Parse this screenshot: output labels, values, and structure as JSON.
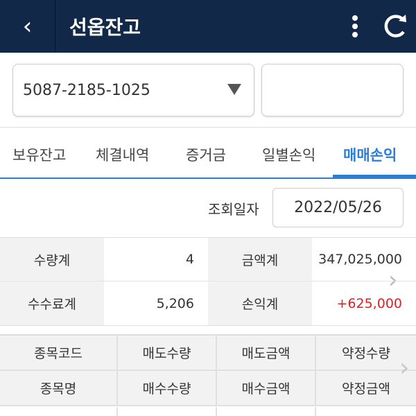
{
  "header": {
    "title": "선옵잔고",
    "back_icon": "chevron-left-icon",
    "more_icon": "more-vertical-icon",
    "refresh_icon": "refresh-icon"
  },
  "account": {
    "value": "5087-2185-1025",
    "password_value": ""
  },
  "tabs": [
    {
      "label": "보유잔고"
    },
    {
      "label": "체결내역"
    },
    {
      "label": "증거금"
    },
    {
      "label": "일별손익"
    },
    {
      "label": "매매손익",
      "active": true
    }
  ],
  "query": {
    "label": "조회일자",
    "date": "2022/05/26"
  },
  "summary": [
    [
      {
        "label": "수량계",
        "value": "4"
      },
      {
        "label": "금액계",
        "value": "347,025,000"
      }
    ],
    [
      {
        "label": "수수료계",
        "value": "5,206"
      },
      {
        "label": "손익계",
        "value": "+625,000"
      }
    ]
  ],
  "grid": {
    "header_rows": [
      [
        "종목코드",
        "매도수량",
        "매도금액",
        "약정수량"
      ],
      [
        "종목명",
        "매수수량",
        "매수금액",
        "약정금액"
      ]
    ]
  },
  "colors": {
    "header_bg": "#112849",
    "accent": "#2a7fd4",
    "profit": "#e02020"
  }
}
